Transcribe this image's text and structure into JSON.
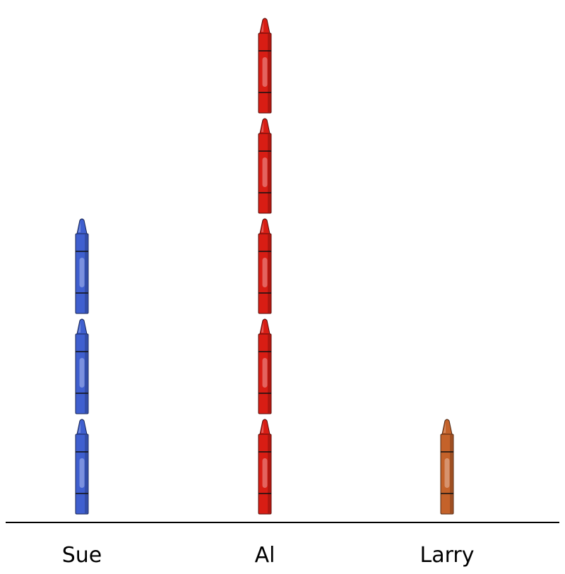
{
  "chart_data": {
    "type": "bar",
    "style": "pictograph",
    "unit_icon": "crayon-icon",
    "categories": [
      "Sue",
      "Al",
      "Larry"
    ],
    "values": [
      3,
      5,
      1
    ],
    "colors": [
      "#3f5fcf",
      "#d81d14",
      "#c4622a"
    ],
    "grid": false,
    "legend": "none"
  }
}
